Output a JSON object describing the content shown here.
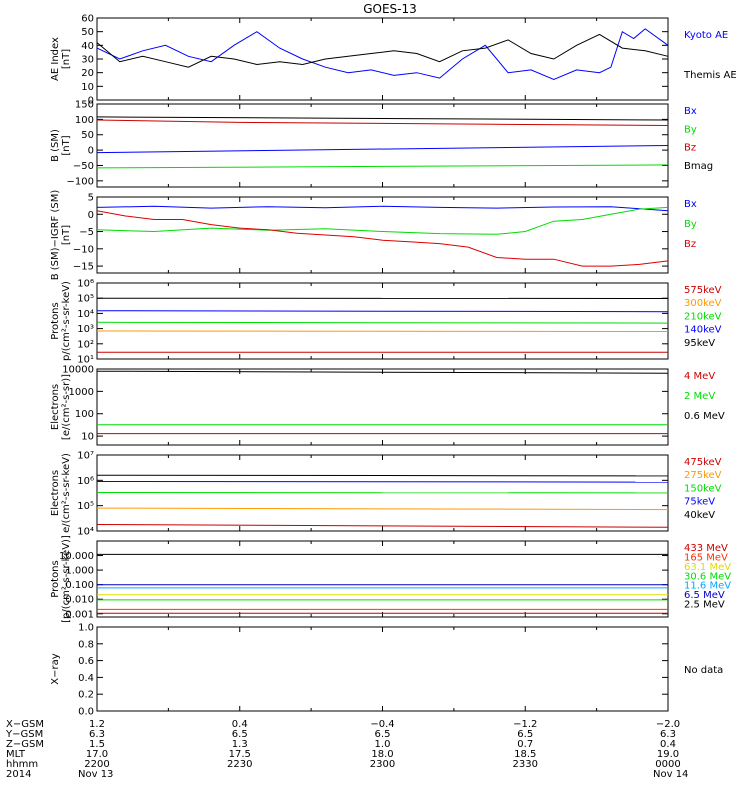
{
  "chart_data": {
    "type": "line",
    "title": "GOES-13",
    "panels": [
      {
        "id": "ae",
        "ylabel": [
          "AE Index",
          "[nT]"
        ],
        "log": false,
        "ylim": [
          0,
          60
        ],
        "ticks": [
          0,
          10,
          20,
          30,
          40,
          50,
          60
        ],
        "tick_labels": [
          "0",
          "10",
          "20",
          "30",
          "40",
          "50",
          "60"
        ],
        "series": [
          {
            "name": "Kyoto AE",
            "color": "#0000ff",
            "x": [
              0,
              0.04,
              0.08,
              0.12,
              0.16,
              0.2,
              0.24,
              0.28,
              0.32,
              0.36,
              0.4,
              0.44,
              0.48,
              0.52,
              0.56,
              0.6,
              0.64,
              0.68,
              0.72,
              0.76,
              0.8,
              0.84,
              0.88,
              0.9,
              0.92,
              0.94,
              0.96,
              1.0
            ],
            "y": [
              38,
              30,
              36,
              40,
              32,
              28,
              40,
              50,
              38,
              30,
              24,
              20,
              22,
              18,
              20,
              16,
              30,
              40,
              20,
              22,
              15,
              22,
              20,
              24,
              50,
              45,
              52,
              40
            ]
          },
          {
            "name": "Themis AE",
            "color": "#000000",
            "x": [
              0,
              0.04,
              0.08,
              0.12,
              0.16,
              0.2,
              0.24,
              0.28,
              0.32,
              0.36,
              0.4,
              0.44,
              0.48,
              0.52,
              0.56,
              0.6,
              0.64,
              0.68,
              0.72,
              0.76,
              0.8,
              0.84,
              0.88,
              0.92,
              0.96,
              1.0
            ],
            "y": [
              42,
              28,
              32,
              28,
              24,
              32,
              30,
              26,
              28,
              26,
              30,
              32,
              34,
              36,
              34,
              28,
              36,
              38,
              44,
              34,
              30,
              40,
              48,
              38,
              36,
              32
            ]
          }
        ]
      },
      {
        "id": "bgsm",
        "ylabel": [
          "B (SM)",
          "[nT]"
        ],
        "log": false,
        "ylim": [
          -120,
          150
        ],
        "ticks": [
          -100,
          -50,
          0,
          50,
          100,
          150
        ],
        "tick_labels": [
          "−100",
          "−50",
          "0",
          "50",
          "100",
          "150"
        ],
        "series": [
          {
            "name": "Bx",
            "color": "#0000ff",
            "x": [
              0,
              1
            ],
            "y": [
              -8,
              15
            ]
          },
          {
            "name": "By",
            "color": "#00dd00",
            "x": [
              0,
              1
            ],
            "y": [
              -58,
              -48
            ]
          },
          {
            "name": "Bz",
            "color": "#cc0000",
            "x": [
              0,
              0.25,
              1
            ],
            "y": [
              98,
              90,
              80
            ]
          },
          {
            "name": "Bmag",
            "color": "#000000",
            "x": [
              0,
              1
            ],
            "y": [
              108,
              98
            ]
          }
        ]
      },
      {
        "id": "bigrf",
        "ylabel": [
          "B (SM)−IGRF (SM)",
          "[nT]"
        ],
        "log": false,
        "ylim": [
          -17,
          5
        ],
        "ticks": [
          -15,
          -10,
          -5,
          0,
          5
        ],
        "tick_labels": [
          "−15",
          "−10",
          "−5",
          "0",
          "5"
        ],
        "series": [
          {
            "name": "Bx",
            "color": "#0000ff",
            "x": [
              0,
              0.1,
              0.2,
              0.3,
              0.4,
              0.5,
              0.6,
              0.7,
              0.8,
              0.9,
              1.0
            ],
            "y": [
              2,
              2.3,
              1.8,
              2.2,
              1.9,
              2.3,
              2.0,
              1.8,
              2.1,
              2.2,
              1.0
            ]
          },
          {
            "name": "By",
            "color": "#00dd00",
            "x": [
              0,
              0.1,
              0.2,
              0.3,
              0.4,
              0.5,
              0.6,
              0.7,
              0.75,
              0.8,
              0.85,
              0.9,
              0.95,
              1.0
            ],
            "y": [
              -4.5,
              -5,
              -4,
              -4.6,
              -4.2,
              -5,
              -5.6,
              -5.8,
              -5,
              -2,
              -1.5,
              0,
              1.5,
              2
            ]
          },
          {
            "name": "Bz",
            "color": "#dd0000",
            "x": [
              0,
              0.05,
              0.1,
              0.15,
              0.2,
              0.25,
              0.3,
              0.35,
              0.4,
              0.45,
              0.5,
              0.55,
              0.6,
              0.65,
              0.7,
              0.75,
              0.8,
              0.85,
              0.9,
              0.95,
              1.0
            ],
            "y": [
              1,
              -0.5,
              -1.5,
              -1.5,
              -3,
              -4,
              -4.5,
              -5.5,
              -6,
              -6.5,
              -7.5,
              -8,
              -8.5,
              -9.5,
              -12.5,
              -13,
              -13,
              -15,
              -15,
              -14.5,
              -13.5
            ]
          }
        ]
      },
      {
        "id": "protons_kev",
        "ylabel": [
          "Protons",
          "p/(cm²-s-sr-keV)"
        ],
        "log": true,
        "ylim": [
          10,
          1000000
        ],
        "ticks": [
          10,
          100,
          1000,
          10000,
          100000,
          1000000
        ],
        "tick_labels": [
          "10¹",
          "10²",
          "10³",
          "10⁴",
          "10⁵",
          "10⁶"
        ],
        "series": [
          {
            "name": "575keV",
            "color": "#cc0000",
            "x": [
              0,
              1
            ],
            "y": [
              28,
              28
            ]
          },
          {
            "name": "300keV",
            "color": "#ff9900",
            "x": [
              0,
              1
            ],
            "y": [
              700,
              640
            ]
          },
          {
            "name": "210keV",
            "color": "#00dd00",
            "x": [
              0,
              1
            ],
            "y": [
              2600,
              2300
            ]
          },
          {
            "name": "140keV",
            "color": "#0000ff",
            "x": [
              0,
              1
            ],
            "y": [
              15000,
              13000
            ]
          },
          {
            "name": "95keV",
            "color": "#000000",
            "x": [
              0,
              1
            ],
            "y": [
              100000,
              95000
            ]
          }
        ]
      },
      {
        "id": "electrons_mev",
        "ylabel": [
          "Electrons",
          "[e/(cm²-s-sr)]"
        ],
        "log": true,
        "ylim": [
          4,
          10000
        ],
        "ticks": [
          10,
          100,
          1000,
          10000
        ],
        "tick_labels": [
          "10",
          "100",
          "1000",
          "10000"
        ],
        "series": [
          {
            "name": "4 MeV",
            "color": "#cc0000",
            "x": [
              0,
              1
            ],
            "y": [
              13,
              13
            ]
          },
          {
            "name": "2 MeV",
            "color": "#00dd00",
            "x": [
              0,
              1
            ],
            "y": [
              32,
              32
            ]
          },
          {
            "name": "0.6 MeV",
            "color": "#000000",
            "x": [
              0,
              1
            ],
            "y": [
              8000,
              6500
            ]
          }
        ]
      },
      {
        "id": "electrons_kev",
        "ylabel": [
          "Electrons",
          "e/(cm²-s-sr-keV)"
        ],
        "log": true,
        "ylim": [
          10000,
          10000000
        ],
        "ticks": [
          10000,
          100000,
          1000000,
          10000000
        ],
        "tick_labels": [
          "10⁴",
          "10⁵",
          "10⁶",
          "10⁷"
        ],
        "series": [
          {
            "name": "475keV",
            "color": "#cc0000",
            "x": [
              0,
              1
            ],
            "y": [
              18000,
              14000
            ]
          },
          {
            "name": "275keV",
            "color": "#ff9900",
            "x": [
              0,
              1
            ],
            "y": [
              80000,
              70000
            ]
          },
          {
            "name": "150keV",
            "color": "#00dd00",
            "x": [
              0,
              1
            ],
            "y": [
              330000,
              320000
            ]
          },
          {
            "name": "75keV",
            "color": "#0000ff",
            "x": [
              0,
              1
            ],
            "y": [
              900000,
              850000
            ]
          },
          {
            "name": "40keV",
            "color": "#000000",
            "x": [
              0,
              1
            ],
            "y": [
              1600000,
              1500000
            ]
          }
        ]
      },
      {
        "id": "protons_mev",
        "ylabel": [
          "Protons",
          "[p/(cm²-s-sr-keV)]"
        ],
        "log": true,
        "ylim": [
          0.0006,
          100
        ],
        "ticks": [
          0.001,
          0.01,
          0.1,
          1,
          10
        ],
        "tick_labels": [
          "0.001",
          "0.010",
          "0.100",
          "1.000",
          "10.000"
        ],
        "series": [
          {
            "name": "433 MeV",
            "color": "#cc0000",
            "x": [
              0,
              1
            ],
            "y": [
              0.0011,
              0.0011
            ]
          },
          {
            "name": "165 MeV",
            "color": "#ff3300",
            "x": [
              0,
              1
            ],
            "y": [
              0.002,
              0.002
            ]
          },
          {
            "name": "63.1 MeV",
            "color": "#dddd00",
            "x": [
              0,
              1
            ],
            "y": [
              0.02,
              0.02
            ]
          },
          {
            "name": "30.6 MeV",
            "color": "#00dd00",
            "x": [
              0,
              1
            ],
            "y": [
              0.009,
              0.009
            ]
          },
          {
            "name": "11.6 MeV",
            "color": "#00aaff",
            "x": [
              0,
              1
            ],
            "y": [
              0.06,
              0.06
            ]
          },
          {
            "name": "6.5 MeV",
            "color": "#0000cc",
            "x": [
              0,
              1
            ],
            "y": [
              0.1,
              0.1
            ]
          },
          {
            "name": "2.5 MeV",
            "color": "#000000",
            "x": [
              0,
              1
            ],
            "y": [
              12,
              12
            ]
          }
        ]
      },
      {
        "id": "xray",
        "ylabel": [
          "X−ray",
          ""
        ],
        "log": false,
        "ylim": [
          0,
          1
        ],
        "ticks": [
          0,
          0.2,
          0.4,
          0.6,
          0.8,
          1.0
        ],
        "tick_labels": [
          "0.0",
          "0.2",
          "0.4",
          "0.6",
          "0.8",
          "1.0"
        ],
        "series": [],
        "note": "No data"
      }
    ],
    "footer": {
      "row_labels": [
        "X−GSM",
        "Y−GSM",
        "Z−GSM",
        "MLT",
        "hhmm",
        "2014"
      ],
      "columns": [
        [
          "1.2",
          "6.3",
          "1.5",
          "17.0",
          "2200",
          "Nov 13"
        ],
        [
          "0.4",
          "6.5",
          "1.3",
          "17.5",
          "2230",
          ""
        ],
        [
          "−0.4",
          "6.5",
          "1.0",
          "18.0",
          "2300",
          ""
        ],
        [
          "−1.2",
          "6.5",
          "0.7",
          "18.5",
          "2330",
          ""
        ],
        [
          "−2.0",
          "6.3",
          "0.4",
          "19.0",
          "0000",
          "Nov 14"
        ]
      ]
    }
  }
}
